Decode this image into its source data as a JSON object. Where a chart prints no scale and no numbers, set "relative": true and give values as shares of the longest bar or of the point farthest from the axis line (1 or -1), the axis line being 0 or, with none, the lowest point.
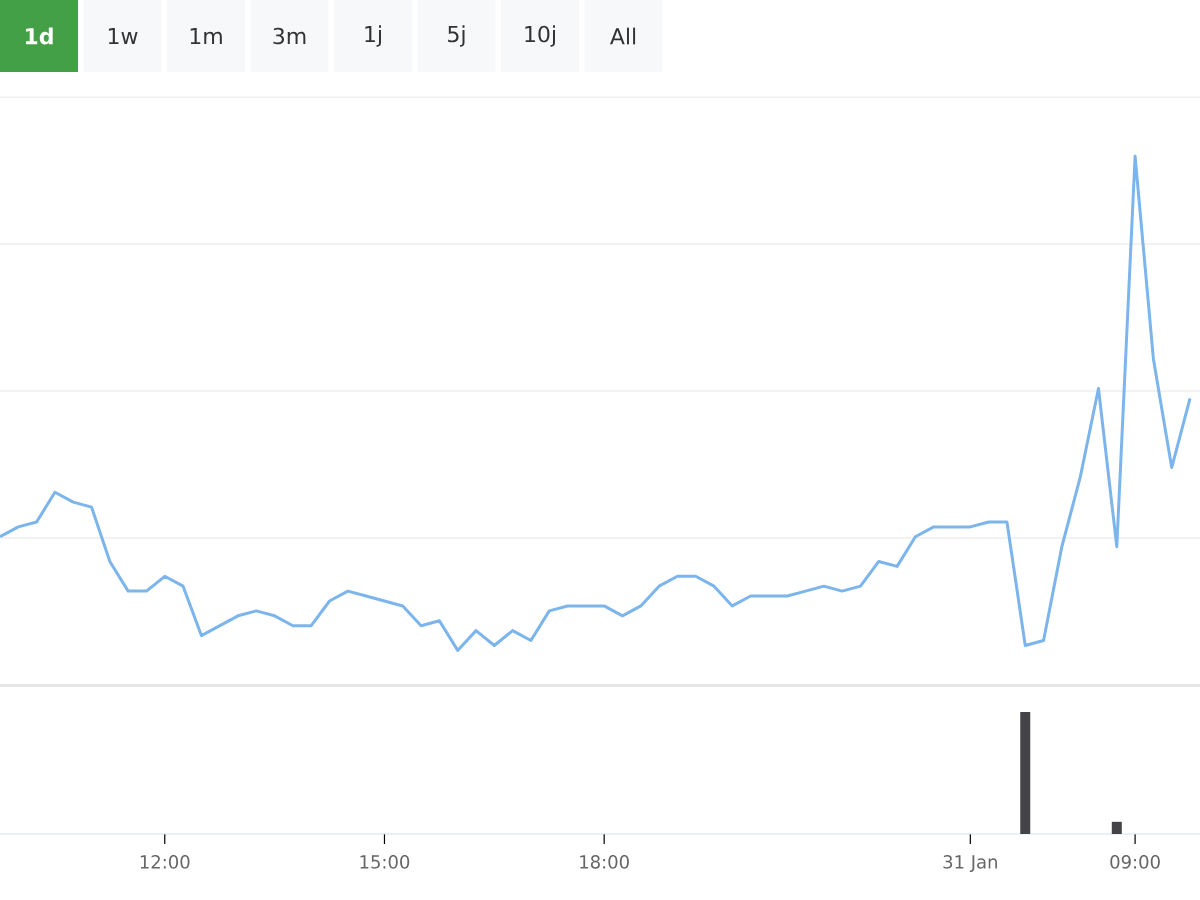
{
  "chart_data": [
    {
      "type": "line",
      "relative": true,
      "grid": true,
      "tick_labels": false,
      "color": "#7cb5ec",
      "annotations": [
        "1d",
        "1w",
        "1m",
        "3m",
        "1j",
        "5j",
        "10j",
        "All"
      ],
      "categories": [
        null,
        null,
        null,
        null,
        null,
        null,
        null,
        null,
        null,
        null,
        null,
        null,
        null,
        null,
        null,
        null,
        null,
        null,
        null,
        null,
        null,
        null,
        null,
        null,
        null,
        null,
        null,
        null,
        null,
        null,
        null,
        null,
        null,
        null,
        null,
        null,
        null,
        null,
        null,
        null,
        null,
        null,
        null,
        null,
        null,
        null,
        null,
        null,
        null,
        null,
        null,
        null,
        null,
        null,
        null,
        null,
        null,
        null,
        null,
        null,
        null,
        null,
        null,
        null,
        null,
        null
      ],
      "values": [
        0.23,
        0.25,
        0.26,
        0.32,
        0.3,
        0.29,
        0.18,
        0.12,
        0.12,
        0.15,
        0.13,
        0.03,
        0.05,
        0.07,
        0.08,
        0.07,
        0.05,
        0.05,
        0.1,
        0.12,
        0.11,
        0.1,
        0.09,
        0.05,
        0.06,
        0,
        0.04,
        0.01,
        0.04,
        0.02,
        0.08,
        0.09,
        0.09,
        0.09,
        0.07,
        0.09,
        0.13,
        0.15,
        0.15,
        0.13,
        0.09,
        0.11,
        0.11,
        0.11,
        0.12,
        0.13,
        0.12,
        0.13,
        0.18,
        0.17,
        0.23,
        0.25,
        0.25,
        0.25,
        0.26,
        0.26,
        0.01,
        0.02,
        0.21,
        0.35,
        0.53,
        0.21,
        1,
        0.59,
        0.37,
        0.51
      ]
    },
    {
      "type": "bar",
      "relative": true,
      "color": "#434348",
      "categories": [
        null,
        null,
        null,
        null,
        null,
        null,
        null,
        null,
        null,
        "12:00",
        null,
        null,
        null,
        null,
        null,
        null,
        null,
        null,
        null,
        null,
        null,
        "15:00",
        null,
        null,
        null,
        null,
        null,
        null,
        null,
        null,
        null,
        null,
        null,
        "18:00",
        null,
        null,
        null,
        null,
        null,
        null,
        null,
        null,
        null,
        null,
        null,
        null,
        null,
        null,
        null,
        null,
        null,
        null,
        null,
        "31 Jan",
        null,
        null,
        null,
        null,
        null,
        null,
        null,
        null,
        "09:00",
        null,
        null,
        null
      ],
      "values": [
        null,
        null,
        null,
        null,
        null,
        null,
        null,
        null,
        null,
        null,
        null,
        null,
        null,
        null,
        null,
        null,
        null,
        null,
        null,
        null,
        null,
        null,
        null,
        null,
        null,
        null,
        null,
        null,
        null,
        null,
        null,
        null,
        null,
        null,
        null,
        null,
        null,
        null,
        null,
        null,
        null,
        null,
        null,
        null,
        null,
        null,
        null,
        null,
        null,
        null,
        null,
        null,
        null,
        null,
        null,
        null,
        1,
        null,
        null,
        null,
        null,
        0.1,
        null,
        null,
        null,
        null
      ]
    }
  ]
}
